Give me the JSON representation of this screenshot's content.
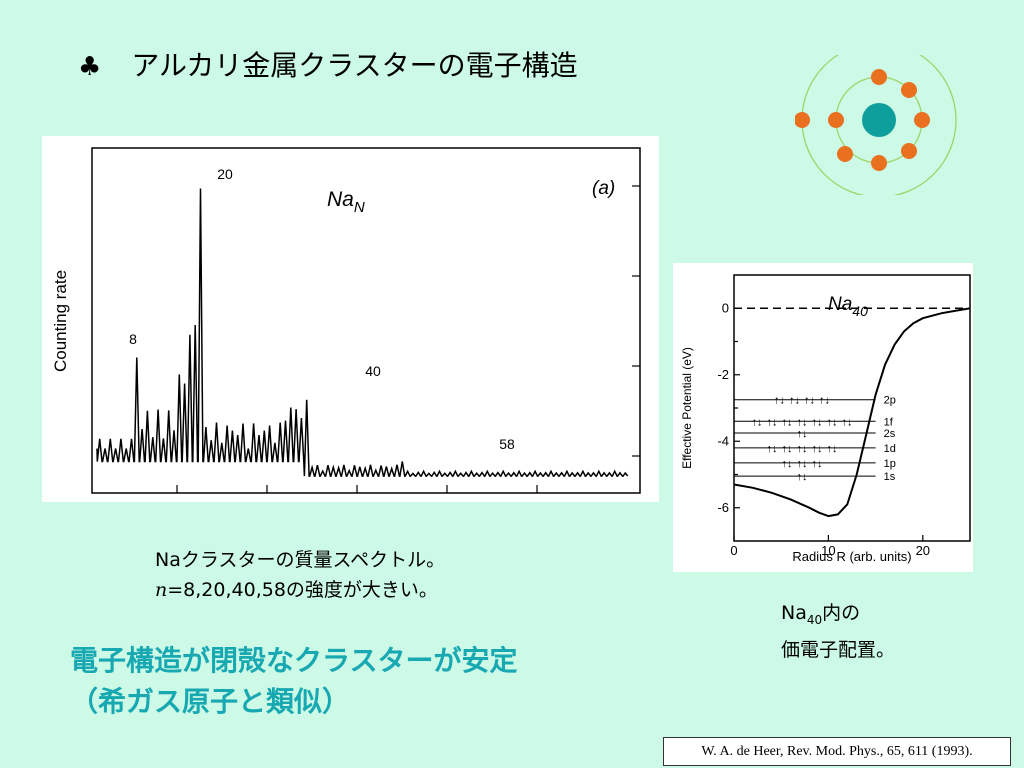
{
  "title": {
    "bullet": "♣",
    "text": "アルカリ金属クラスターの電子構造"
  },
  "spectrum_figure": {
    "panel_label": "(a)",
    "cluster_label_main": "Na",
    "cluster_label_sub": "N",
    "ylabel": "Counting rate",
    "peak_labels": [
      "8",
      "20",
      "40",
      "58"
    ]
  },
  "potential_figure": {
    "cluster_label_main": "Na",
    "cluster_label_sub": "40",
    "ylabel": "Effective Potential (eV)",
    "xlabel": "Radius  R (arb. units)",
    "x_ticks": [
      "0",
      "10",
      "20"
    ],
    "y_ticks": [
      "0",
      "-2",
      "-4",
      "-6"
    ],
    "levels": [
      "2p",
      "1f",
      "2s",
      "1d",
      "1p",
      "1s"
    ]
  },
  "chart_data": [
    {
      "type": "line",
      "title": "",
      "annotation": "Na_N (a)",
      "ylabel": "Counting rate",
      "xlabel": "",
      "labeled_peaks": [
        {
          "n": 8,
          "relative_height": 0.38
        },
        {
          "n": 20,
          "relative_height": 0.9
        },
        {
          "n": 40,
          "relative_height": 0.25
        },
        {
          "n": 58,
          "relative_height": 0.06
        }
      ],
      "grid": false
    },
    {
      "type": "line",
      "title": "",
      "annotation": "Na_40",
      "xlabel": "Radius  R (arb. units)",
      "ylabel": "Effective Potential (eV)",
      "xlim": [
        0,
        25
      ],
      "ylim": [
        -7,
        1
      ],
      "series": [
        {
          "x": [
            0,
            2,
            4,
            6,
            8,
            9,
            10,
            11,
            12,
            13,
            14,
            15,
            16,
            17,
            18,
            19,
            20,
            22,
            24,
            25
          ],
          "y": [
            -5.3,
            -5.4,
            -5.55,
            -5.75,
            -6.0,
            -6.15,
            -6.25,
            -6.2,
            -5.9,
            -5.0,
            -3.8,
            -2.6,
            -1.7,
            -1.1,
            -0.7,
            -0.45,
            -0.3,
            -0.15,
            -0.05,
            0.0
          ]
        }
      ],
      "reference_line": {
        "y": 0,
        "style": "dashed"
      },
      "energy_levels": [
        {
          "name": "2p",
          "y": -2.75
        },
        {
          "name": "1f",
          "y": -3.4
        },
        {
          "name": "2s",
          "y": -3.75
        },
        {
          "name": "1d",
          "y": -4.2
        },
        {
          "name": "1p",
          "y": -4.65
        },
        {
          "name": "1s",
          "y": -5.05
        }
      ],
      "grid": false
    }
  ],
  "captions": {
    "spectrum_line1": "Naクラスターの質量スペクトル。",
    "spectrum_line2_n": "n",
    "spectrum_line2_rest": "=8,20,40,58の強度が大きい。",
    "na40_main": "Na",
    "na40_sub": "40",
    "na40_rest": "内の",
    "na40_line2": "価電子配置。"
  },
  "conclusion": {
    "line1": "電子構造が閉殻なクラスターが安定",
    "line2": "（希ガス原子と類似）"
  },
  "citation": "W. A. de Heer, Rev. Mod. Phys., 65, 611 (1993).",
  "colors": {
    "background": "#ccfae6",
    "conclusion": "#17a8b2",
    "atom_core": "#0e9e9c",
    "atom_electron": "#e8701e",
    "atom_orbit": "#9ed46a"
  }
}
